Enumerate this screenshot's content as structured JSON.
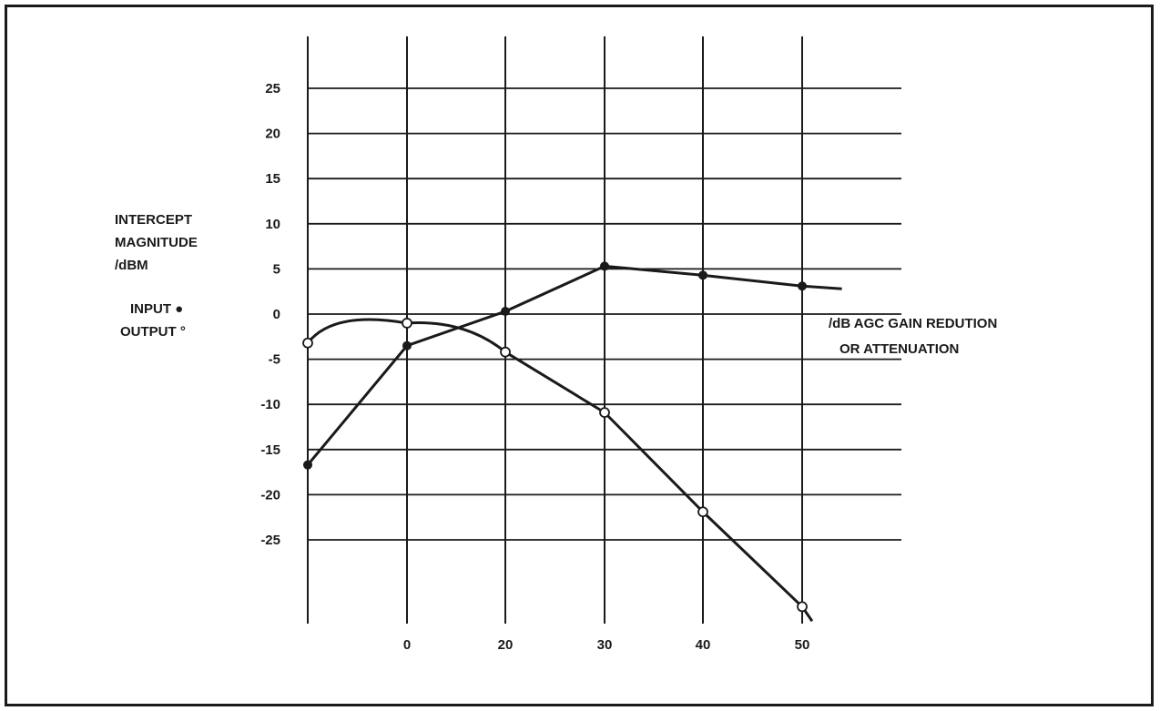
{
  "chart_data": {
    "type": "line",
    "title": "",
    "ylabel_lines": [
      "INTERCEPT",
      "MAGNITUDE",
      "/dBM"
    ],
    "legend": {
      "input": "INPUT ●",
      "output": "OUTPUT °"
    },
    "xlabel_lines": [
      "/dB AGC GAIN REDUTION",
      "OR ATTENUATION"
    ],
    "x_tick_labels": [
      "",
      "0",
      "20",
      "30",
      "40",
      "50"
    ],
    "y_ticks": [
      25,
      20,
      15,
      10,
      5,
      0,
      -5,
      -10,
      -15,
      -20,
      -25
    ],
    "y_tick_labels": [
      "25",
      "20",
      "15",
      "10",
      "5",
      "0",
      "-5",
      "-10",
      "-15",
      "-20",
      "-25"
    ],
    "ylim": [
      -35,
      30
    ],
    "grid": true,
    "series": [
      {
        "name": "INPUT",
        "marker": "filled",
        "points": [
          {
            "x": -10,
            "y": -16.7
          },
          {
            "x": 0,
            "y": -3.5
          },
          {
            "x": 20,
            "y": 0.3
          },
          {
            "x": 30,
            "y": 5.3
          },
          {
            "x": 40,
            "y": 4.3
          },
          {
            "x": 50,
            "y": 3.1
          }
        ],
        "line_end": {
          "x": 54,
          "y": 2.8
        }
      },
      {
        "name": "OUTPUT",
        "marker": "open",
        "points": [
          {
            "x": -10,
            "y": -3.2
          },
          {
            "x": 0,
            "y": -1.0
          },
          {
            "x": 20,
            "y": -4.2
          },
          {
            "x": 30,
            "y": -10.9
          },
          {
            "x": 40,
            "y": -21.9
          },
          {
            "x": 50,
            "y": -32.4
          }
        ],
        "line_end": {
          "x": 51,
          "y": -34.0
        }
      }
    ]
  }
}
